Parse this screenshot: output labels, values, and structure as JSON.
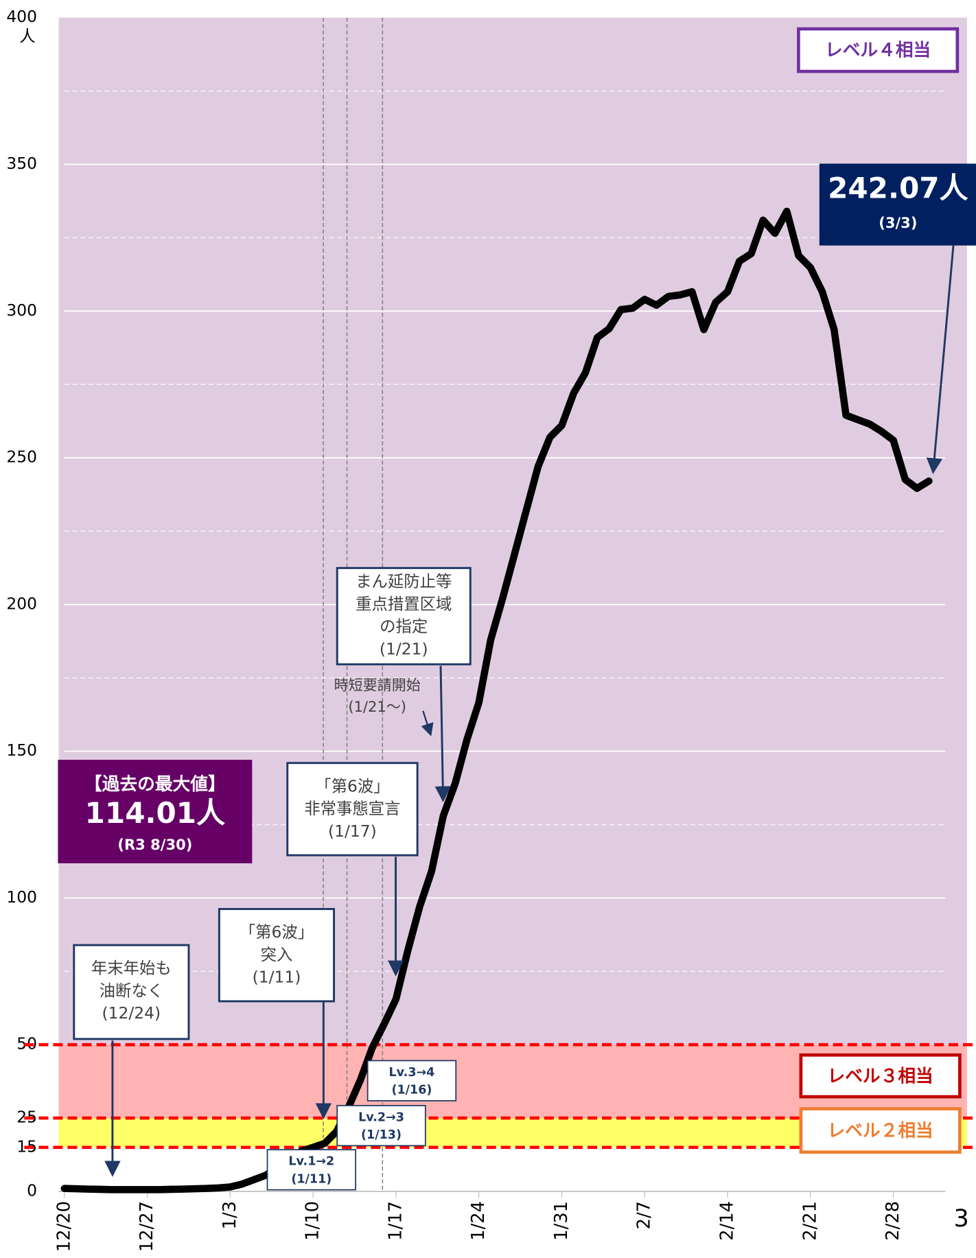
{
  "chart_data": {
    "type": "line",
    "y_unit": "人",
    "page_number": "3",
    "categories": [
      "12/20",
      null,
      null,
      null,
      null,
      null,
      null,
      "12/27",
      null,
      null,
      null,
      null,
      null,
      null,
      "1/3",
      null,
      null,
      null,
      null,
      null,
      null,
      "1/10",
      null,
      null,
      null,
      null,
      null,
      null,
      "1/17",
      null,
      null,
      null,
      null,
      null,
      null,
      "1/24",
      null,
      null,
      null,
      null,
      null,
      null,
      "1/31",
      null,
      null,
      null,
      null,
      null,
      null,
      "2/7",
      null,
      null,
      null,
      null,
      null,
      null,
      "2/14",
      null,
      null,
      null,
      null,
      null,
      null,
      "2/21",
      null,
      null,
      null,
      null,
      null,
      null,
      "2/28",
      null,
      null,
      null
    ],
    "series": [
      {
        "color": "#000000",
        "values": [
          1,
          0.9,
          0.8,
          0.7,
          0.6,
          0.6,
          0.6,
          0.6,
          0.6,
          0.7,
          0.8,
          0.9,
          1,
          1.2,
          1.5,
          2.5,
          4,
          5.5,
          8,
          11,
          13.7,
          15,
          16.4,
          20.5,
          28.7,
          38,
          49,
          57,
          65.5,
          82,
          97,
          109,
          128,
          139,
          154,
          166.6,
          188,
          202,
          217,
          232,
          247,
          257,
          261,
          272,
          279,
          291,
          294,
          300.5,
          301,
          304,
          302,
          305,
          305.5,
          306.6,
          293.7,
          303,
          306.6,
          317,
          319.6,
          331,
          326.5,
          334,
          318.9,
          314.8,
          306.6,
          293.7,
          264.5,
          263,
          261.5,
          259,
          256,
          242.6,
          239.6,
          242.07
        ]
      }
    ],
    "ylim": [
      0,
      400
    ],
    "yticks": [
      0,
      15,
      25,
      50,
      100,
      150,
      200,
      250,
      300,
      350,
      400
    ],
    "minor_yticks": [
      75,
      125,
      175,
      225,
      275,
      325,
      375
    ],
    "grid": true,
    "bands": [
      {
        "from": 50,
        "to": 400,
        "color": "#e0cce0",
        "label": "レベル４相当",
        "label_color": "#7030a0"
      },
      {
        "from": 25,
        "to": 50,
        "color": "#ffb3b3",
        "label": "レベル３相当",
        "label_color": "#c00000"
      },
      {
        "from": 15,
        "to": 25,
        "color": "#ffff66",
        "label": "レベル２相当",
        "label_color": "#ed7d31"
      }
    ],
    "level_lines": [
      15,
      25,
      50
    ],
    "vlines": [
      22,
      24,
      27
    ],
    "callouts": [
      {
        "lines": [
          "年末年始も",
          "油断なく",
          "(12/24)"
        ]
      },
      {
        "lines": [
          "「第6波」",
          "突入",
          "(1/11)"
        ]
      },
      {
        "lines": [
          "「第6波」",
          "非常事態宣言",
          "(1/17)"
        ]
      },
      {
        "lines": [
          "まん延防止等",
          "重点措置区域",
          "の指定",
          "(1/21)"
        ]
      },
      {
        "lines": [
          "時短要請開始",
          "(1/21～)"
        ]
      },
      {
        "lines": [
          "Lv.1→2",
          "(1/11)"
        ]
      },
      {
        "lines": [
          "Lv.2→3",
          "(1/13)"
        ]
      },
      {
        "lines": [
          "Lv.3→4",
          "(1/16)"
        ]
      }
    ],
    "max_box": {
      "lines": [
        "【過去の最大値】",
        "114.01人",
        "(R3 8/30)"
      ]
    },
    "latest_box": {
      "lines": [
        "242.07人",
        "(3/3)"
      ]
    }
  }
}
